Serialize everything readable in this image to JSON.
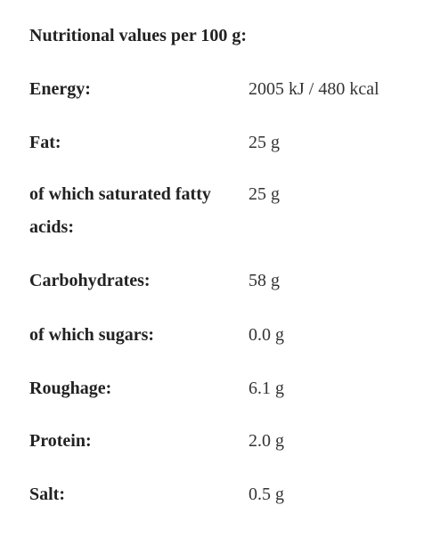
{
  "title": "Nutritional values per 100 g:",
  "rows": [
    [
      "Energy:",
      "2005 kJ / 480 kcal"
    ],
    [
      "Fat:",
      "25 g"
    ],
    [
      "of which saturated fatty acids:",
      "25 g"
    ],
    [
      "Carbohydrates:",
      "58 g"
    ],
    [
      "of which sugars:",
      "0.0 g"
    ],
    [
      "Roughage:",
      "6.1 g"
    ],
    [
      "Protein:",
      "2.0 g"
    ],
    [
      "Salt:",
      "0.5 g"
    ]
  ]
}
